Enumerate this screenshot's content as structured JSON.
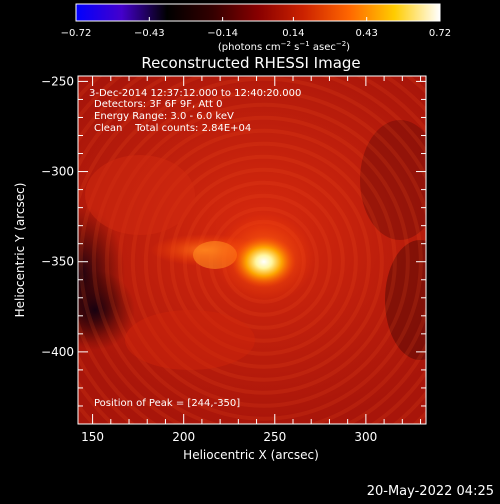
{
  "colorbar": {
    "ticks": [
      "−0.72",
      "−0.43",
      "−0.14",
      "0.14",
      "0.43",
      "0.72"
    ],
    "tick_values": [
      -0.72,
      -0.43,
      -0.14,
      0.14,
      0.43,
      0.72
    ],
    "range": [
      -0.72,
      0.72
    ],
    "unit_label_parts": {
      "a": "(photons cm",
      "b": "−2",
      "c": " s",
      "d": "−1",
      "e": " asec",
      "f": "−2",
      "g": ")"
    },
    "colors": [
      "#0000ff",
      "#4400cc",
      "#000000",
      "#330000",
      "#880000",
      "#cc2200",
      "#ff6600",
      "#ffcc00",
      "#ffffff"
    ]
  },
  "chart_data": {
    "type": "heatmap",
    "title": "Reconstructed RHESSI Image",
    "xlabel": "Heliocentric X (arcsec)",
    "ylabel": "Heliocentric Y (arcsec)",
    "xlim": [
      142,
      333
    ],
    "ylim": [
      -440,
      -247
    ],
    "x_ticks": [
      150,
      200,
      250,
      300
    ],
    "x_tick_labels": [
      "150",
      "200",
      "250",
      "300"
    ],
    "y_ticks": [
      -250,
      -300,
      -350,
      -400
    ],
    "y_tick_labels": [
      "−250",
      "−300",
      "−350",
      "−400"
    ],
    "peak": [
      244,
      -350
    ],
    "annotations": {
      "line1": "3-Dec-2014 12:37:12.000 to 12:40:20.000",
      "line2": "Detectors: 3F 6F 9F, Att 0",
      "line3": "Energy Range: 3.0 - 6.0 keV",
      "line4": "Clean    Total counts: 2.84E+04",
      "peak_label": "Position of Peak = [244,-350]"
    }
  },
  "footer": {
    "date": "20-May-2022 04:25"
  }
}
